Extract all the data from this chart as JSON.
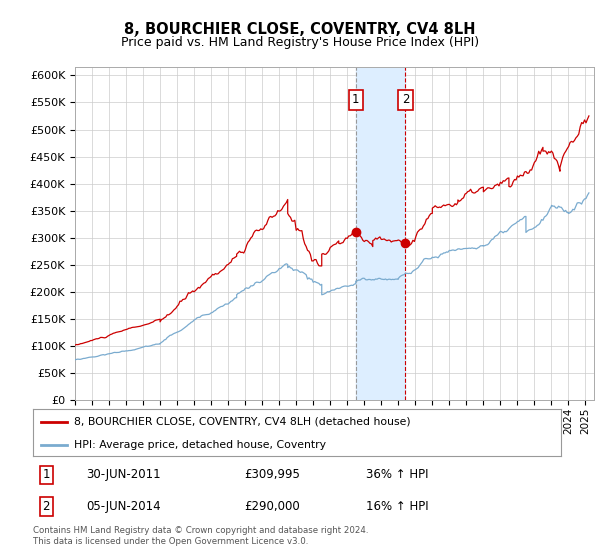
{
  "title": "8, BOURCHIER CLOSE, COVENTRY, CV4 8LH",
  "subtitle": "Price paid vs. HM Land Registry's House Price Index (HPI)",
  "title_fontsize": 10.5,
  "subtitle_fontsize": 9,
  "ylabel_ticks": [
    "£0",
    "£50K",
    "£100K",
    "£150K",
    "£200K",
    "£250K",
    "£300K",
    "£350K",
    "£400K",
    "£450K",
    "£500K",
    "£550K",
    "£600K"
  ],
  "ytick_values": [
    0,
    50000,
    100000,
    150000,
    200000,
    250000,
    300000,
    350000,
    400000,
    450000,
    500000,
    550000,
    600000
  ],
  "ylim": [
    0,
    615000
  ],
  "xlim_start": 1995.0,
  "xlim_end": 2025.5,
  "sale1_date_x": 2011.5,
  "sale1_price": 309995,
  "sale2_date_x": 2014.42,
  "sale2_price": 290000,
  "red_line_color": "#cc0000",
  "blue_line_color": "#7aabcf",
  "shade_color": "#ddeeff",
  "vline1_color": "#999999",
  "vline2_color": "#cc0000",
  "marker_box_color": "#cc0000",
  "grid_color": "#cccccc",
  "bg_color": "#ffffff",
  "legend_label_red": "8, BOURCHIER CLOSE, COVENTRY, CV4 8LH (detached house)",
  "legend_label_blue": "HPI: Average price, detached house, Coventry",
  "footnote": "Contains HM Land Registry data © Crown copyright and database right 2024.\nThis data is licensed under the Open Government Licence v3.0."
}
